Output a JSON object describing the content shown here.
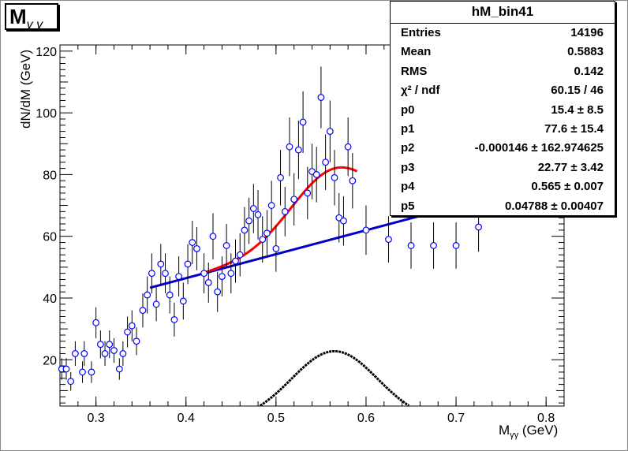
{
  "chart_data": {
    "type": "scatter",
    "title": "M",
    "title_sub": "γ γ",
    "xlabel_main": "M",
    "xlabel_sub": "γγ",
    "xlabel_unit": " (GeV)",
    "ylabel": "dN/dM (GeV)",
    "xlim": [
      0.26,
      0.82
    ],
    "ylim": [
      5,
      122
    ],
    "x_ticks": [
      "0.3",
      "0.4",
      "0.5",
      "0.6",
      "0.7",
      "0.8"
    ],
    "y_ticks": [
      "20",
      "40",
      "60",
      "80",
      "100",
      "120"
    ],
    "grid": false,
    "legend": "top-right",
    "series": [
      {
        "kind": "data-points",
        "color": "#0000ff",
        "points": [
          [
            0.262,
            17,
            3.5
          ],
          [
            0.267,
            17,
            3.5
          ],
          [
            0.272,
            13,
            3
          ],
          [
            0.277,
            22,
            4
          ],
          [
            0.285,
            16,
            3.5
          ],
          [
            0.287,
            22,
            4
          ],
          [
            0.295,
            16,
            3.5
          ],
          [
            0.3,
            32,
            5
          ],
          [
            0.305,
            25,
            4.5
          ],
          [
            0.31,
            22,
            4
          ],
          [
            0.315,
            25,
            4.5
          ],
          [
            0.32,
            23,
            4
          ],
          [
            0.326,
            17,
            3.5
          ],
          [
            0.33,
            22,
            4
          ],
          [
            0.335,
            29,
            5
          ],
          [
            0.34,
            31,
            5
          ],
          [
            0.345,
            26,
            4.5
          ],
          [
            0.352,
            36,
            5.5
          ],
          [
            0.357,
            41,
            6
          ],
          [
            0.362,
            48,
            6.5
          ],
          [
            0.367,
            38,
            5.5
          ],
          [
            0.372,
            51,
            6.5
          ],
          [
            0.377,
            48,
            6.5
          ],
          [
            0.382,
            41,
            6
          ],
          [
            0.387,
            33,
            5.5
          ],
          [
            0.392,
            47,
            6.5
          ],
          [
            0.397,
            39,
            6
          ],
          [
            0.402,
            51,
            6.5
          ],
          [
            0.407,
            58,
            7
          ],
          [
            0.412,
            56,
            7
          ],
          [
            0.42,
            48,
            6.5
          ],
          [
            0.425,
            45,
            6.5
          ],
          [
            0.43,
            60,
            7.5
          ],
          [
            0.435,
            42,
            6.5
          ],
          [
            0.44,
            47,
            6.5
          ],
          [
            0.445,
            57,
            7
          ],
          [
            0.45,
            48,
            6.5
          ],
          [
            0.455,
            52,
            7
          ],
          [
            0.46,
            54,
            7
          ],
          [
            0.465,
            62,
            7.5
          ],
          [
            0.47,
            65,
            7.5
          ],
          [
            0.475,
            69,
            8
          ],
          [
            0.48,
            67,
            8
          ],
          [
            0.485,
            59,
            7.5
          ],
          [
            0.49,
            61,
            7.5
          ],
          [
            0.495,
            70,
            8
          ],
          [
            0.5,
            56,
            7.5
          ],
          [
            0.505,
            79,
            9
          ],
          [
            0.51,
            68,
            8
          ],
          [
            0.515,
            89,
            9.5
          ],
          [
            0.52,
            72,
            8.5
          ],
          [
            0.525,
            88,
            9.5
          ],
          [
            0.53,
            97,
            10
          ],
          [
            0.535,
            74,
            8.5
          ],
          [
            0.54,
            81,
            9
          ],
          [
            0.545,
            80,
            9
          ],
          [
            0.55,
            105,
            10
          ],
          [
            0.555,
            84,
            9
          ],
          [
            0.56,
            94,
            10
          ],
          [
            0.565,
            79,
            9
          ],
          [
            0.57,
            66,
            8
          ],
          [
            0.575,
            65,
            8
          ],
          [
            0.58,
            89,
            9.5
          ],
          [
            0.585,
            78,
            9
          ],
          [
            0.6,
            62,
            8
          ],
          [
            0.625,
            59,
            7.5
          ],
          [
            0.65,
            57,
            7.5
          ],
          [
            0.675,
            57,
            7.5
          ],
          [
            0.7,
            57,
            7.5
          ],
          [
            0.725,
            63,
            8
          ]
        ]
      },
      {
        "kind": "fit-total",
        "color": "#ff0000",
        "x_range": [
          0.42,
          0.59
        ]
      },
      {
        "kind": "background-line",
        "color": "#0000cc",
        "x_range": [
          0.36,
          0.72
        ]
      },
      {
        "kind": "signal-gaussian",
        "color": "#000000",
        "x_range": [
          0.47,
          0.66
        ]
      }
    ],
    "fit_params": {
      "p0": 15.4,
      "p1": 77.6,
      "p2": -0.000146,
      "p3": 22.77,
      "p4": 0.565,
      "p5": 0.04788
    }
  },
  "stats": {
    "title": "hM_bin41",
    "rows": [
      {
        "key": "Entries",
        "value": "14196"
      },
      {
        "key": "Mean",
        "value": "0.5883"
      },
      {
        "key": "RMS",
        "value": "0.142"
      },
      {
        "key": "χ² / ndf",
        "value": "60.15 / 46"
      },
      {
        "key": "p0",
        "value": "15.4  ± 8.5"
      },
      {
        "key": "p1",
        "value": "77.6  ± 15.4"
      },
      {
        "key": "p2",
        "value": "-0.000146  ± 162.974625"
      },
      {
        "key": "p3",
        "value": "22.77  ± 3.42"
      },
      {
        "key": "p4",
        "value": "0.565  ± 0.007"
      },
      {
        "key": "p5",
        "value": "0.04788  ± 0.00407"
      }
    ]
  }
}
